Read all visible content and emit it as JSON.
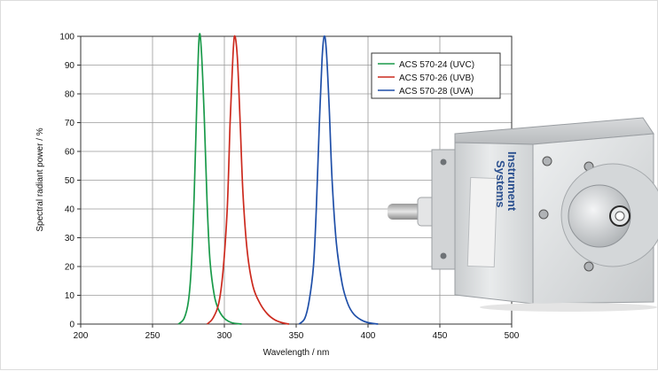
{
  "chart_data": {
    "type": "line",
    "title": "",
    "xlabel": "Wavelength / nm",
    "ylabel": "Spectral radiant power / %",
    "xlim": [
      200,
      500
    ],
    "ylim": [
      0,
      100
    ],
    "x_ticks": [
      200,
      250,
      300,
      350,
      400,
      450,
      500
    ],
    "y_ticks": [
      0,
      10,
      20,
      30,
      40,
      50,
      60,
      70,
      80,
      90,
      100
    ],
    "grid": true,
    "legend_position": "top-right",
    "series": [
      {
        "name": "ACS 570-24 (UVC)",
        "color": "#1a9a4a",
        "x": [
          268,
          272,
          275,
          277,
          279,
          281,
          282.5,
          284,
          286,
          288,
          290,
          293,
          296,
          300,
          305,
          312
        ],
        "y": [
          0,
          2,
          8,
          20,
          45,
          80,
          100,
          95,
          72,
          42,
          22,
          10,
          5,
          2,
          0.5,
          0
        ]
      },
      {
        "name": "ACS 570-26 (UVB)",
        "color": "#cc2a1e",
        "x": [
          288,
          292,
          296,
          299,
          302,
          304,
          305.5,
          307,
          309,
          311,
          313,
          316,
          320,
          325,
          330,
          335,
          340,
          345
        ],
        "y": [
          0,
          2,
          7,
          18,
          40,
          70,
          88,
          100,
          93,
          70,
          45,
          25,
          13,
          7,
          3.5,
          1.5,
          0.5,
          0
        ]
      },
      {
        "name": "ACS 570-28 (UVA)",
        "color": "#1f4fa8",
        "x": [
          352,
          356,
          359,
          362,
          364,
          366,
          368,
          369.5,
          371,
          373,
          375,
          378,
          382,
          386,
          390,
          395,
          400,
          407
        ],
        "y": [
          0,
          2,
          8,
          20,
          40,
          68,
          92,
          100,
          95,
          75,
          50,
          28,
          14,
          7,
          3.5,
          1.5,
          0.5,
          0
        ]
      }
    ]
  },
  "device": {
    "brand_line1": "Instrument",
    "brand_line2": "Systems"
  }
}
